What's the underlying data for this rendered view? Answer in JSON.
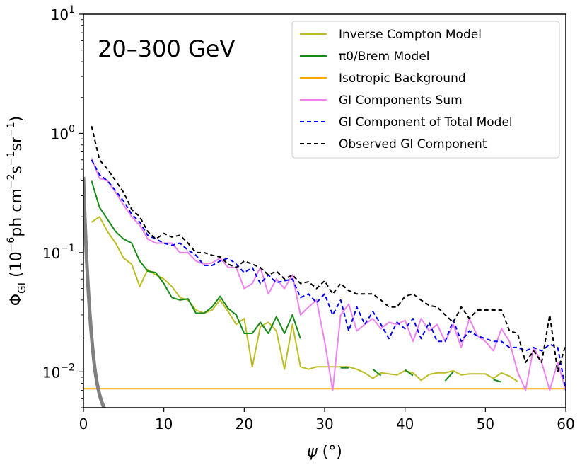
{
  "chart_data": {
    "type": "line",
    "title": "20–300 GeV",
    "xlabel": "ψ (°)",
    "ylabel": "ΦGI (10⁻⁶ph cm⁻²s⁻¹sr⁻¹)",
    "xlim": [
      0,
      60
    ],
    "ylim": [
      0.005,
      10
    ],
    "yscale": "log",
    "x_ticks": [
      0,
      10,
      20,
      30,
      40,
      50,
      60
    ],
    "y_ticks": [
      {
        "value": 0.01,
        "base": "10",
        "exp": "−2"
      },
      {
        "value": 0.1,
        "base": "10",
        "exp": "−1"
      },
      {
        "value": 1,
        "base": "10",
        "exp": "0"
      },
      {
        "value": 10,
        "base": "10",
        "exp": "1"
      }
    ],
    "legend_position": "top-right",
    "series": [
      {
        "name": "Inverse Compton Model",
        "color": "#bcbd22",
        "dash": "solid",
        "x": [
          1,
          2,
          3,
          4,
          5,
          6,
          7,
          8,
          9,
          10,
          11,
          12,
          13,
          14,
          15,
          16,
          17,
          18,
          19,
          20,
          21,
          22,
          23,
          24,
          25,
          26,
          27,
          28,
          29,
          30,
          32,
          33,
          34,
          35,
          36,
          37,
          38,
          39,
          40,
          41,
          42,
          43,
          44,
          45,
          46,
          47,
          48,
          49,
          50,
          51,
          52,
          53,
          54
        ],
        "y": [
          0.18,
          0.2,
          0.15,
          0.12,
          0.09,
          0.08,
          0.052,
          0.072,
          0.065,
          0.06,
          0.052,
          0.042,
          0.04,
          0.033,
          0.031,
          0.033,
          0.04,
          0.032,
          0.025,
          0.028,
          0.011,
          0.024,
          0.026,
          0.022,
          0.0105,
          0.025,
          0.011,
          0.0105,
          0.011,
          0.011,
          0.011,
          0.011,
          0.0105,
          0.0098,
          0.0088,
          0.0098,
          0.0096,
          0.0094,
          0.0102,
          0.0098,
          0.0085,
          0.0095,
          0.0098,
          0.0098,
          0.0102,
          0.0094,
          0.0096,
          0.0096,
          0.0096,
          0.0088,
          0.0098,
          0.0092,
          0.0083
        ]
      },
      {
        "name": "π0/Brem Model",
        "color": "#168a16",
        "dash": "solid",
        "x": [
          1,
          2,
          3,
          4,
          5,
          6,
          7,
          8,
          9,
          10,
          11,
          12,
          13,
          14,
          15,
          16,
          17,
          18,
          19,
          20,
          21,
          22,
          23,
          24,
          25,
          26,
          27
        ],
        "y": [
          0.4,
          0.24,
          0.19,
          0.15,
          0.13,
          0.12,
          0.085,
          0.07,
          0.068,
          0.055,
          0.042,
          0.04,
          0.041,
          0.031,
          0.031,
          0.035,
          0.043,
          0.034,
          0.03,
          0.021,
          0.021,
          0.026,
          0.021,
          0.029,
          0.021,
          0.03,
          0.019
        ],
        "extra_segments": [
          {
            "x": [
              32,
              33
            ],
            "y": [
              0.0108,
              0.0108
            ]
          },
          {
            "x": [
              36,
              37
            ],
            "y": [
              0.0105,
              0.0093
            ]
          },
          {
            "x": [
              40,
              41
            ],
            "y": [
              0.0104,
              0.0093
            ]
          },
          {
            "x": [
              45,
              46
            ],
            "y": [
              0.0084,
              0.01
            ]
          },
          {
            "x": [
              51,
              52
            ],
            "y": [
              0.0086,
              0.0082
            ]
          }
        ]
      },
      {
        "name": "Isotropic Background",
        "color": "#ffa500",
        "dash": "solid",
        "x": [
          0,
          60
        ],
        "y": [
          0.0072,
          0.0072
        ]
      },
      {
        "name": "GI Components Sum",
        "color": "#ee82ee",
        "dash": "solid",
        "x": [
          1,
          2,
          3,
          4,
          5,
          6,
          7,
          8,
          9,
          10,
          11,
          12,
          13,
          14,
          15,
          16,
          17,
          18,
          19,
          20,
          21,
          22,
          23,
          24,
          25,
          26,
          27,
          28,
          29,
          30,
          31,
          32,
          33,
          34,
          35,
          36,
          37,
          38,
          39,
          40,
          41,
          42,
          43,
          44,
          45,
          46,
          47,
          48,
          49,
          50,
          51,
          52,
          53,
          54,
          55,
          56,
          57,
          58,
          59,
          60
        ],
        "y": [
          0.62,
          0.42,
          0.4,
          0.32,
          0.25,
          0.2,
          0.17,
          0.13,
          0.12,
          0.12,
          0.12,
          0.1,
          0.1,
          0.085,
          0.08,
          0.082,
          0.09,
          0.075,
          0.075,
          0.05,
          0.055,
          0.075,
          0.045,
          0.06,
          0.05,
          0.065,
          0.03,
          0.035,
          0.04,
          0.018,
          0.007,
          0.03,
          0.037,
          0.022,
          0.025,
          0.028,
          0.023,
          0.026,
          0.025,
          0.027,
          0.018,
          0.028,
          0.022,
          0.025,
          0.018,
          0.025,
          0.016,
          0.028,
          0.02,
          0.018,
          0.015,
          0.023,
          0.018,
          0.01,
          0.007,
          0.016,
          0.012,
          0.007,
          0.012,
          0.007
        ]
      },
      {
        "name": "GI Component of Total Model",
        "color": "#0000ff",
        "dash": "dashed",
        "x": [
          1,
          2,
          3,
          4,
          5,
          6,
          7,
          8,
          9,
          10,
          11,
          12,
          13,
          14,
          15,
          16,
          17,
          18,
          19,
          20,
          21,
          22,
          23,
          24,
          25,
          26,
          27,
          28,
          29,
          30,
          31,
          32,
          33,
          34,
          35,
          36,
          37,
          38,
          39,
          40,
          41,
          42,
          43,
          44,
          45,
          46,
          47,
          48,
          49,
          50,
          51,
          52,
          53,
          54,
          55,
          56,
          57,
          58,
          59,
          60
        ],
        "y": [
          0.6,
          0.45,
          0.4,
          0.33,
          0.27,
          0.21,
          0.18,
          0.14,
          0.13,
          0.12,
          0.115,
          0.12,
          0.105,
          0.095,
          0.078,
          0.078,
          0.085,
          0.09,
          0.08,
          0.068,
          0.075,
          0.055,
          0.065,
          0.056,
          0.058,
          0.06,
          0.042,
          0.045,
          0.038,
          0.045,
          0.03,
          0.04,
          0.022,
          0.035,
          0.025,
          0.032,
          0.025,
          0.019,
          0.026,
          0.023,
          0.028,
          0.019,
          0.026,
          0.018,
          0.018,
          0.027,
          0.018,
          0.022,
          0.02,
          0.019,
          0.018,
          0.018,
          0.016,
          0.016,
          0.015,
          0.016,
          0.015,
          0.017,
          0.016,
          0.007
        ]
      },
      {
        "name": "Observed GI Component",
        "color": "#000000",
        "dash": "dashed",
        "x": [
          1,
          2,
          3,
          4,
          5,
          6,
          7,
          8,
          9,
          10,
          11,
          12,
          13,
          14,
          15,
          16,
          17,
          18,
          19,
          20,
          21,
          22,
          23,
          24,
          25,
          26,
          27,
          28,
          29,
          30,
          31,
          32,
          33,
          34,
          35,
          36,
          37,
          38,
          39,
          40,
          41,
          42,
          43,
          44,
          45,
          46,
          47,
          48,
          49,
          50,
          51,
          52,
          53,
          54,
          55,
          56,
          57,
          58,
          59,
          60
        ],
        "y": [
          1.15,
          0.6,
          0.5,
          0.4,
          0.32,
          0.23,
          0.2,
          0.15,
          0.13,
          0.145,
          0.135,
          0.14,
          0.12,
          0.1,
          0.1,
          0.095,
          0.092,
          0.08,
          0.075,
          0.085,
          0.08,
          0.075,
          0.065,
          0.07,
          0.06,
          0.065,
          0.055,
          0.057,
          0.05,
          0.058,
          0.045,
          0.055,
          0.048,
          0.045,
          0.045,
          0.045,
          0.04,
          0.035,
          0.035,
          0.043,
          0.045,
          0.04,
          0.036,
          0.035,
          0.03,
          0.026,
          0.035,
          0.028,
          0.033,
          0.033,
          0.033,
          0.033,
          0.022,
          0.021,
          0.012,
          0.015,
          0.012,
          0.03,
          0.01,
          0.017
        ]
      }
    ]
  }
}
